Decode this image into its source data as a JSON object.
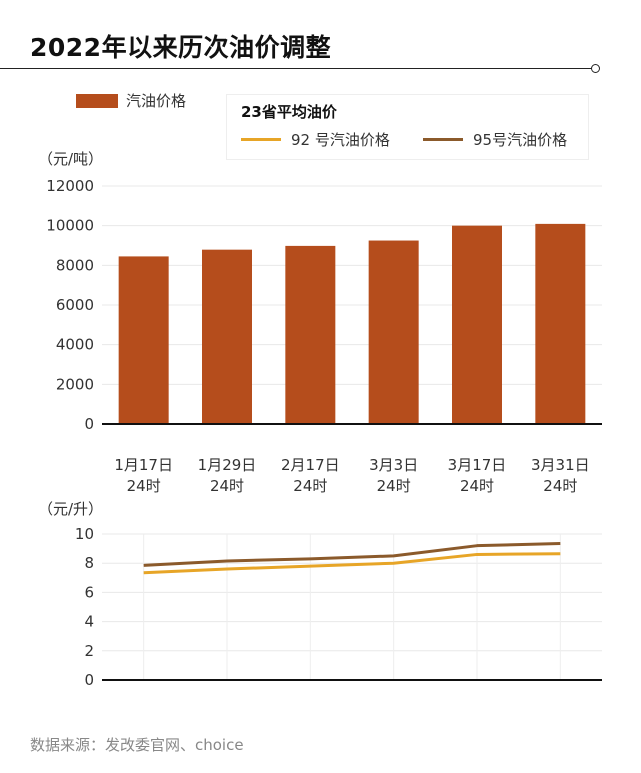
{
  "title": "2022年以来历次油价调整",
  "source": "数据来源：发改委官网、choice",
  "colors": {
    "bar": "#b54d1c",
    "line92": "#e7a527",
    "line95": "#8b5a2b"
  },
  "chart_data": [
    {
      "type": "bar",
      "ylabel": "（元/吨）",
      "ylim": [
        0,
        12000
      ],
      "yticks": [
        0,
        2000,
        4000,
        6000,
        8000,
        10000,
        12000
      ],
      "categories": [
        "1月17日\n24时",
        "1月29日\n24时",
        "2月17日\n24时",
        "3月3日\n24时",
        "3月17日\n24时",
        "3月31日\n24时"
      ],
      "series": [
        {
          "name": "汽油价格",
          "values": [
            8450,
            8790,
            8980,
            9250,
            10000,
            10090
          ]
        }
      ],
      "legend": "top-left",
      "grid": true
    },
    {
      "type": "line",
      "ylabel": "（元/升）",
      "ylim": [
        0,
        10
      ],
      "yticks": [
        0,
        2,
        4,
        6,
        8,
        10
      ],
      "legend_title": "23省平均油价",
      "series": [
        {
          "name": "92 号汽油价格",
          "values": [
            7.35,
            7.6,
            7.8,
            8.0,
            8.6,
            8.65
          ]
        },
        {
          "name": "95号汽油价格",
          "values": [
            7.85,
            8.15,
            8.3,
            8.5,
            9.2,
            9.35
          ]
        }
      ],
      "legend": "top-right",
      "grid": true
    }
  ]
}
